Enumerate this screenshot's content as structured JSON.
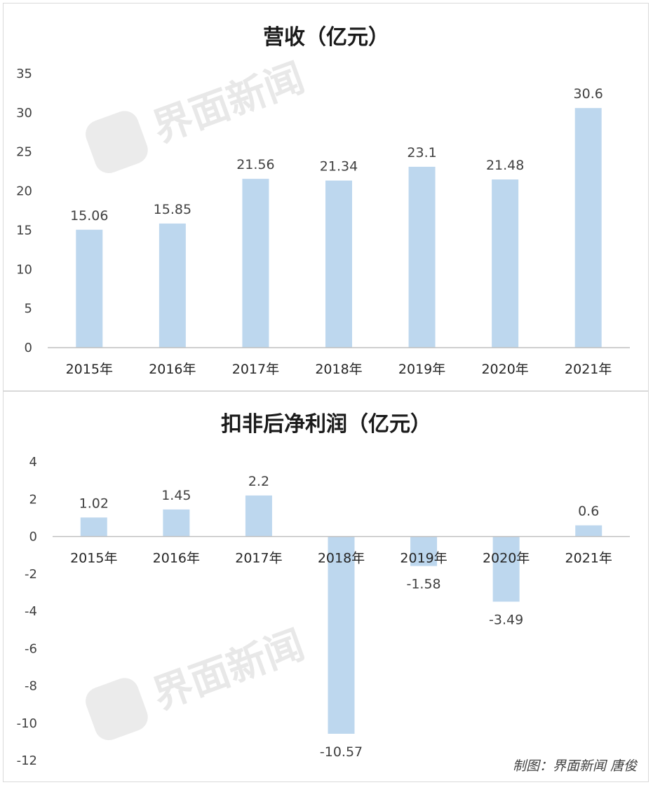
{
  "watermark": "界面新闻",
  "credit": "制图：界面新闻 唐俊",
  "colors": {
    "bar": "#bdd7ee",
    "axis": "#bfbfbf"
  },
  "chart_data": [
    {
      "type": "bar",
      "title": "营收（亿元）",
      "categories": [
        "2015年",
        "2016年",
        "2017年",
        "2018年",
        "2019年",
        "2020年",
        "2021年"
      ],
      "values": [
        15.06,
        15.85,
        21.56,
        21.34,
        23.1,
        21.48,
        30.6
      ],
      "value_labels": [
        "15.06",
        "15.85",
        "21.56",
        "21.34",
        "23.1",
        "21.48",
        "30.6"
      ],
      "ylim": [
        0,
        35
      ],
      "yticks": [
        0,
        5,
        10,
        15,
        20,
        25,
        30,
        35
      ],
      "grid": false
    },
    {
      "type": "bar",
      "title": "扣非后净利润（亿元）",
      "categories": [
        "2015年",
        "2016年",
        "2017年",
        "2018年",
        "2019年",
        "2020年",
        "2021年"
      ],
      "values": [
        1.02,
        1.45,
        2.2,
        -10.57,
        -1.58,
        -3.49,
        0.6
      ],
      "value_labels": [
        "1.02",
        "1.45",
        "2.2",
        "-10.57",
        "-1.58",
        "-3.49",
        "0.6"
      ],
      "ylim": [
        -12,
        4
      ],
      "yticks": [
        4,
        2,
        0,
        -2,
        -4,
        -6,
        -8,
        -10,
        -12
      ],
      "grid": false
    }
  ]
}
